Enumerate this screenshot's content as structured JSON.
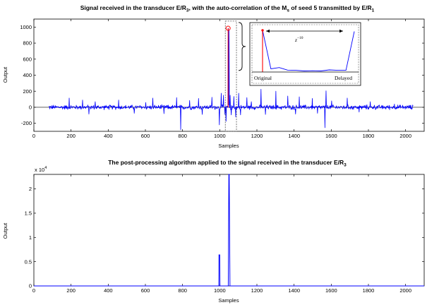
{
  "figure": {
    "inset_labels": {
      "original": "Original",
      "delayed": "Delayed",
      "delay_base": "z",
      "delay_exp": "−10"
    }
  },
  "chart_data": [
    {
      "type": "line",
      "title": {
        "part1": "Signal received in the transducer E/R",
        "sub1": "3",
        "part2": ", with the auto-correlation of the M",
        "sub2": "s",
        "part3": " of seed 5 transmitted by E/R",
        "sub3": "1"
      },
      "xlabel": "Samples",
      "ylabel": "Output",
      "xlim": [
        0,
        2100
      ],
      "ylim": [
        -300,
        1100
      ],
      "xticks": [
        0,
        200,
        400,
        600,
        800,
        1000,
        1200,
        1400,
        1600,
        1800,
        2000
      ],
      "yticks": [
        -200,
        0,
        200,
        400,
        600,
        800,
        1000
      ],
      "grid": false,
      "line_color": "#0000ff",
      "marker_color": "#ff0000",
      "series": [
        {
          "x_range": [
            80,
            2040
          ],
          "noise_amplitude": 25,
          "spikes": [
            [
              190,
              115
            ],
            [
              262,
              90
            ],
            [
              295,
              -85
            ],
            [
              330,
              70
            ],
            [
              455,
              90
            ],
            [
              540,
              -75
            ],
            [
              602,
              60
            ],
            [
              640,
              115
            ],
            [
              700,
              -80
            ],
            [
              768,
              120
            ],
            [
              790,
              -280
            ],
            [
              838,
              85
            ],
            [
              885,
              110
            ],
            [
              905,
              -90
            ],
            [
              958,
              125
            ],
            [
              998,
              -220
            ],
            [
              1008,
              175
            ],
            [
              1020,
              150
            ],
            [
              1027,
              -90
            ],
            [
              1034,
              -175
            ],
            [
              1045,
              985
            ],
            [
              1050,
              965
            ],
            [
              1056,
              150
            ],
            [
              1062,
              -95
            ],
            [
              1075,
              135
            ],
            [
              1085,
              -120
            ],
            [
              1101,
              175
            ],
            [
              1112,
              -95
            ],
            [
              1145,
              120
            ],
            [
              1170,
              70
            ],
            [
              1222,
              225
            ],
            [
              1246,
              -90
            ],
            [
              1302,
              200
            ],
            [
              1365,
              140
            ],
            [
              1408,
              -85
            ],
            [
              1427,
              130
            ],
            [
              1498,
              110
            ],
            [
              1525,
              -75
            ],
            [
              1565,
              -255
            ],
            [
              1572,
              205
            ],
            [
              1602,
              80
            ],
            [
              1686,
              115
            ],
            [
              1750,
              -60
            ],
            [
              1810,
              70
            ],
            [
              1940,
              40
            ]
          ]
        }
      ],
      "markers": [
        {
          "x": 1045,
          "y": 985
        }
      ],
      "inset": {
        "x": [
          0,
          1,
          2,
          3,
          4,
          5,
          6,
          7,
          8,
          9,
          10,
          11
        ],
        "values": [
          985,
          75,
          105,
          45,
          40,
          25,
          30,
          25,
          50,
          40,
          40,
          958
        ]
      }
    },
    {
      "type": "line",
      "title": {
        "part1": "The post-processing algorithm applied to the signal received in the transducer E/R",
        "sub1": "3"
      },
      "xlabel": "Samples",
      "ylabel": "Output",
      "y_multiplier": {
        "base": "x 10",
        "exp": "4"
      },
      "xlim": [
        0,
        2100
      ],
      "ylim": [
        0,
        2.3
      ],
      "xticks": [
        0,
        200,
        400,
        600,
        800,
        1000,
        1200,
        1400,
        1600,
        1800,
        2000
      ],
      "yticks": [
        0,
        0.5,
        1,
        1.5,
        2
      ],
      "grid": false,
      "line_color": "#0000ff",
      "series": [
        {
          "x": [
            0,
            995,
            996,
            1000,
            1001,
            1046,
            1049,
            1050,
            1051,
            1055,
            2100
          ],
          "y": [
            0,
            0,
            0.64,
            0.64,
            0,
            0,
            2.3,
            2.3,
            2.3,
            0,
            0
          ]
        }
      ]
    }
  ]
}
